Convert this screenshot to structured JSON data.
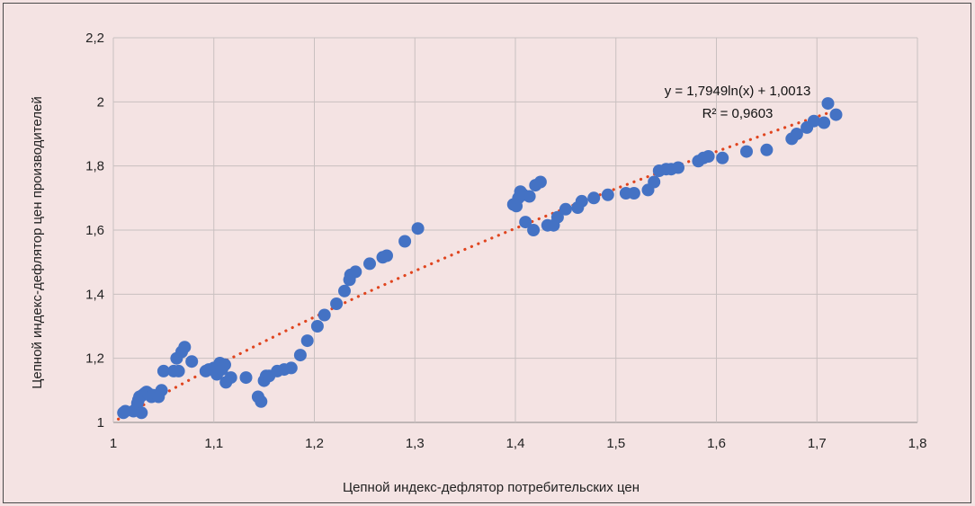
{
  "chart_data": {
    "type": "scatter",
    "title": "",
    "xlabel": "Цепной индекс-дефлятор потребительских цен",
    "ylabel": "Цепной индекс-дефлятор цен производителей",
    "xlim": [
      1,
      1.8
    ],
    "ylim": [
      1,
      2.2
    ],
    "xticks": [
      1,
      1.1,
      1.2,
      1.3,
      1.4,
      1.5,
      1.6,
      1.7,
      1.8
    ],
    "xtick_labels": [
      "1",
      "1,1",
      "1,2",
      "1,3",
      "1,4",
      "1,5",
      "1,6",
      "1,7",
      "1,8"
    ],
    "yticks": [
      1,
      1.2,
      1.4,
      1.6,
      1.8,
      2,
      2.2
    ],
    "ytick_labels": [
      "1",
      "1,2",
      "1,4",
      "1,6",
      "1,8",
      "2",
      "2,2"
    ],
    "grid": true,
    "marker_color": "#4472c4",
    "trend_color": "#e0451f",
    "trendline": {
      "type": "logarithmic",
      "a": 1.7949,
      "b": 1.0013,
      "equation": "y = 1,7949ln(x) + 1,0013",
      "r2_label": "R² = 0,9603"
    },
    "points": [
      [
        1.01,
        1.03
      ],
      [
        1.012,
        1.035
      ],
      [
        1.02,
        1.035
      ],
      [
        1.022,
        1.04
      ],
      [
        1.024,
        1.06
      ],
      [
        1.025,
        1.07
      ],
      [
        1.026,
        1.08
      ],
      [
        1.028,
        1.03
      ],
      [
        1.029,
        1.085
      ],
      [
        1.031,
        1.09
      ],
      [
        1.033,
        1.095
      ],
      [
        1.035,
        1.09
      ],
      [
        1.038,
        1.08
      ],
      [
        1.04,
        1.085
      ],
      [
        1.045,
        1.08
      ],
      [
        1.048,
        1.1
      ],
      [
        1.05,
        1.16
      ],
      [
        1.06,
        1.16
      ],
      [
        1.063,
        1.2
      ],
      [
        1.065,
        1.16
      ],
      [
        1.068,
        1.22
      ],
      [
        1.071,
        1.235
      ],
      [
        1.078,
        1.19
      ],
      [
        1.092,
        1.16
      ],
      [
        1.095,
        1.165
      ],
      [
        1.1,
        1.17
      ],
      [
        1.103,
        1.15
      ],
      [
        1.106,
        1.185
      ],
      [
        1.108,
        1.165
      ],
      [
        1.111,
        1.18
      ],
      [
        1.112,
        1.125
      ],
      [
        1.117,
        1.14
      ],
      [
        1.132,
        1.14
      ],
      [
        1.144,
        1.08
      ],
      [
        1.147,
        1.065
      ],
      [
        1.15,
        1.13
      ],
      [
        1.152,
        1.145
      ],
      [
        1.155,
        1.145
      ],
      [
        1.163,
        1.16
      ],
      [
        1.17,
        1.165
      ],
      [
        1.177,
        1.17
      ],
      [
        1.186,
        1.21
      ],
      [
        1.193,
        1.255
      ],
      [
        1.203,
        1.3
      ],
      [
        1.21,
        1.335
      ],
      [
        1.222,
        1.37
      ],
      [
        1.23,
        1.41
      ],
      [
        1.235,
        1.445
      ],
      [
        1.236,
        1.46
      ],
      [
        1.241,
        1.47
      ],
      [
        1.255,
        1.495
      ],
      [
        1.268,
        1.515
      ],
      [
        1.272,
        1.52
      ],
      [
        1.29,
        1.565
      ],
      [
        1.303,
        1.605
      ],
      [
        1.398,
        1.68
      ],
      [
        1.401,
        1.675
      ],
      [
        1.403,
        1.7
      ],
      [
        1.405,
        1.72
      ],
      [
        1.408,
        1.71
      ],
      [
        1.41,
        1.625
      ],
      [
        1.414,
        1.705
      ],
      [
        1.418,
        1.6
      ],
      [
        1.42,
        1.74
      ],
      [
        1.425,
        1.75
      ],
      [
        1.432,
        1.615
      ],
      [
        1.438,
        1.615
      ],
      [
        1.442,
        1.64
      ],
      [
        1.45,
        1.665
      ],
      [
        1.462,
        1.67
      ],
      [
        1.466,
        1.69
      ],
      [
        1.478,
        1.7
      ],
      [
        1.492,
        1.71
      ],
      [
        1.51,
        1.715
      ],
      [
        1.518,
        1.715
      ],
      [
        1.532,
        1.725
      ],
      [
        1.538,
        1.75
      ],
      [
        1.543,
        1.785
      ],
      [
        1.55,
        1.79
      ],
      [
        1.555,
        1.79
      ],
      [
        1.562,
        1.795
      ],
      [
        1.582,
        1.815
      ],
      [
        1.587,
        1.825
      ],
      [
        1.592,
        1.83
      ],
      [
        1.606,
        1.825
      ],
      [
        1.63,
        1.845
      ],
      [
        1.65,
        1.85
      ],
      [
        1.675,
        1.885
      ],
      [
        1.68,
        1.9
      ],
      [
        1.69,
        1.92
      ],
      [
        1.697,
        1.94
      ],
      [
        1.707,
        1.935
      ],
      [
        1.711,
        1.995
      ],
      [
        1.719,
        1.96
      ]
    ]
  }
}
